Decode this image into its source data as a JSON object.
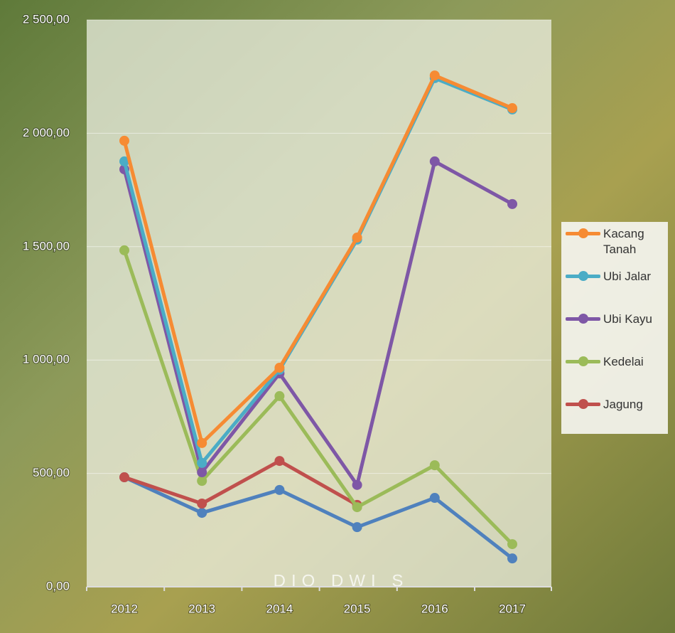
{
  "chart_data": {
    "type": "line",
    "watermark": "DIO DWI S",
    "categories": [
      "2012",
      "2013",
      "2014",
      "2015",
      "2016",
      "2017"
    ],
    "series": [
      {
        "name": "Kacang Tanah",
        "color": "#f68b33",
        "values": [
          1967,
          634,
          966,
          1540,
          2255,
          2111
        ]
      },
      {
        "name": "Ubi Jalar",
        "color": "#4bacc6",
        "values": [
          1876,
          546,
          957,
          1531,
          2243,
          2105
        ]
      },
      {
        "name": "Ubi Kayu",
        "color": "#7e57a6",
        "values": [
          1841,
          505,
          941,
          449,
          1876,
          1688
        ]
      },
      {
        "name": "Kedelai",
        "color": "#9bbb59",
        "values": [
          1484,
          467,
          841,
          351,
          536,
          188
        ]
      },
      {
        "name": "Jagung",
        "color": "#c0504d",
        "values": [
          483,
          367,
          555,
          361,
          null,
          null
        ]
      },
      {
        "color": "#4f81bd",
        "values": [
          483,
          326,
          427,
          263,
          392,
          125
        ]
      }
    ],
    "ylim": [
      0,
      2500
    ],
    "yticks": [
      {
        "value": 0,
        "label": "0,00"
      },
      {
        "value": 500,
        "label": "500,00"
      },
      {
        "value": 1000,
        "label": "1 000,00"
      },
      {
        "value": 1500,
        "label": "1 500,00"
      },
      {
        "value": 2000,
        "label": "2 000,00"
      },
      {
        "value": 2500,
        "label": "2 500,00"
      }
    ],
    "grid": true
  }
}
